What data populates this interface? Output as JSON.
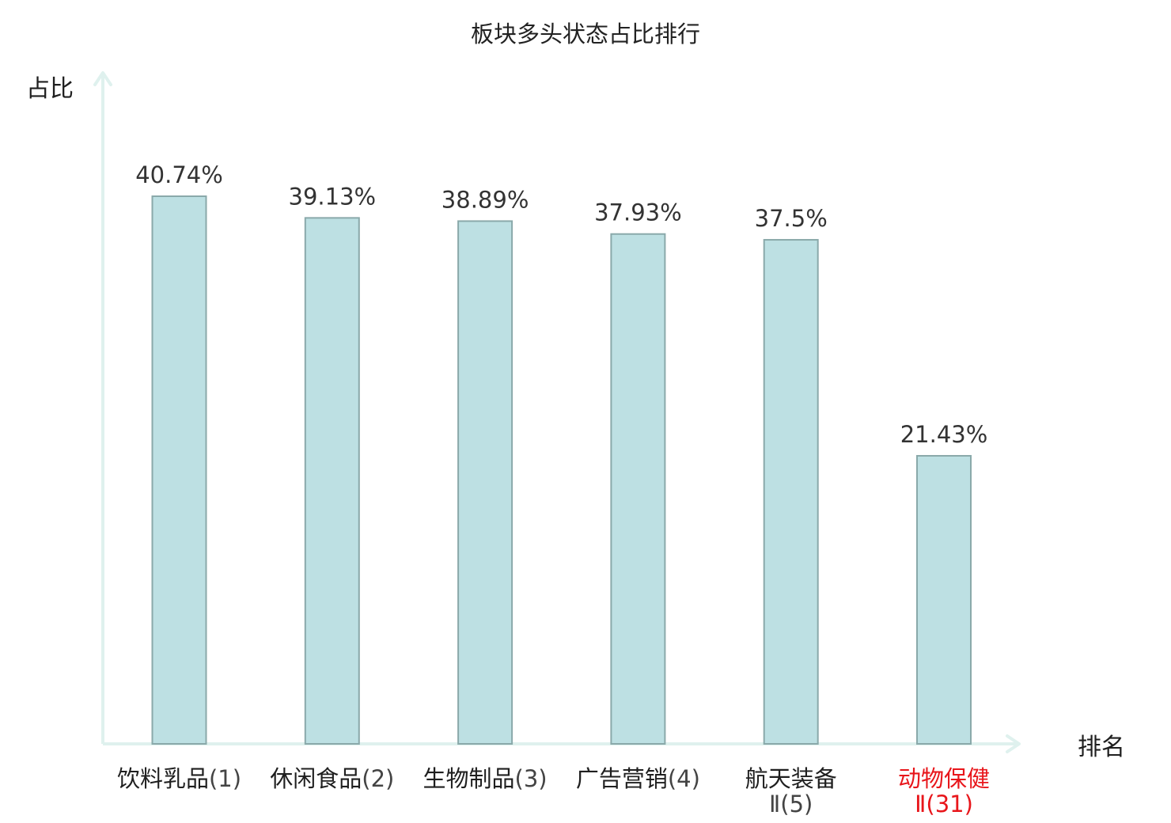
{
  "chart_data": {
    "type": "bar",
    "title": "板块多头状态占比排行",
    "ylabel": "占比",
    "xlabel": "排名",
    "categories": [
      {
        "name": "饮料乳品",
        "rank": "(1)",
        "highlight": false
      },
      {
        "name": "休闲食品",
        "rank": "(2)",
        "highlight": false
      },
      {
        "name": "生物制品",
        "rank": "(3)",
        "highlight": false
      },
      {
        "name": "广告营销",
        "rank": "(4)",
        "highlight": false
      },
      {
        "name": "航天装备",
        "line2": "Ⅱ",
        "rank": "(5)",
        "highlight": false
      },
      {
        "name": "动物保健",
        "line2": "Ⅱ",
        "rank": "(31)",
        "highlight": true
      }
    ],
    "values": [
      40.74,
      39.13,
      38.89,
      37.93,
      37.5,
      21.43
    ],
    "value_labels": [
      "40.74%",
      "39.13%",
      "38.89%",
      "37.93%",
      "37.5%",
      "21.43%"
    ],
    "ylim": [
      0,
      45
    ],
    "grid": false,
    "legend": "none"
  },
  "colors": {
    "bar_fill": "#bde0e3",
    "bar_stroke": "#8aa9aa",
    "axis": "#dff1ee",
    "text": "#1f1f1f",
    "value_text": "#333333",
    "rank_text": "#444444",
    "highlight": "#e8161b"
  }
}
